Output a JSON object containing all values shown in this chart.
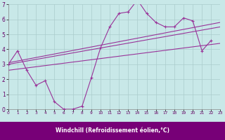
{
  "bg_color": "#c8e8e8",
  "grid_color": "#aacccc",
  "line_color": "#993399",
  "xlim": [
    0,
    23
  ],
  "ylim": [
    0,
    7
  ],
  "xtick_vals": [
    0,
    1,
    2,
    3,
    4,
    5,
    6,
    7,
    8,
    9,
    10,
    11,
    12,
    13,
    14,
    15,
    16,
    17,
    18,
    19,
    20,
    21,
    22,
    23
  ],
  "ytick_vals": [
    0,
    1,
    2,
    3,
    4,
    5,
    6,
    7
  ],
  "xlabel": "Windchill (Refroidissement éolien,°C)",
  "line1_x": [
    0,
    1,
    2,
    3,
    4,
    5,
    6,
    7,
    8,
    9,
    10,
    11,
    12,
    13,
    14,
    15,
    16,
    17,
    18,
    19,
    20,
    21,
    22
  ],
  "line1_y": [
    3.0,
    3.9,
    2.6,
    1.6,
    1.9,
    0.5,
    0.0,
    0.0,
    0.2,
    2.1,
    4.1,
    5.5,
    6.4,
    6.5,
    7.3,
    6.4,
    5.8,
    5.5,
    5.5,
    6.1,
    5.9,
    3.9,
    4.6
  ],
  "line2_x": [
    0,
    23
  ],
  "line2_y": [
    2.6,
    4.4
  ],
  "line3_x": [
    0,
    23
  ],
  "line3_y": [
    3.0,
    5.5
  ],
  "line4_x": [
    0,
    23
  ],
  "line4_y": [
    3.1,
    5.8
  ]
}
